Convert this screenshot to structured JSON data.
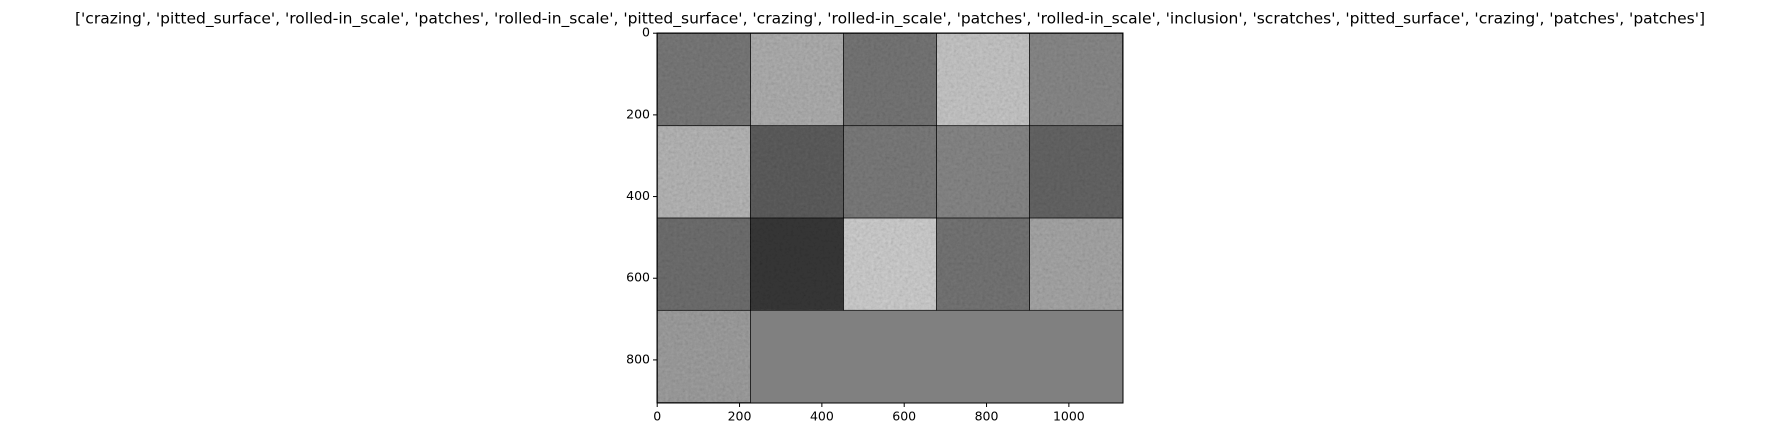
{
  "chart_data": {
    "type": "image",
    "title": "['crazing', 'pitted_surface', 'rolled-in_scale', 'patches', 'rolled-in_scale', 'pitted_surface', 'crazing', 'rolled-in_scale', 'patches', 'rolled-in_scale', 'inclusion', 'scratches', 'pitted_surface', 'crazing', 'patches', 'patches']",
    "xlim": [
      -0.5,
      1131.5
    ],
    "ylim": [
      905.5,
      -0.5
    ],
    "xticks": [
      0,
      200,
      400,
      600,
      800,
      1000
    ],
    "yticks": [
      0,
      200,
      400,
      600,
      800
    ]
  }
}
